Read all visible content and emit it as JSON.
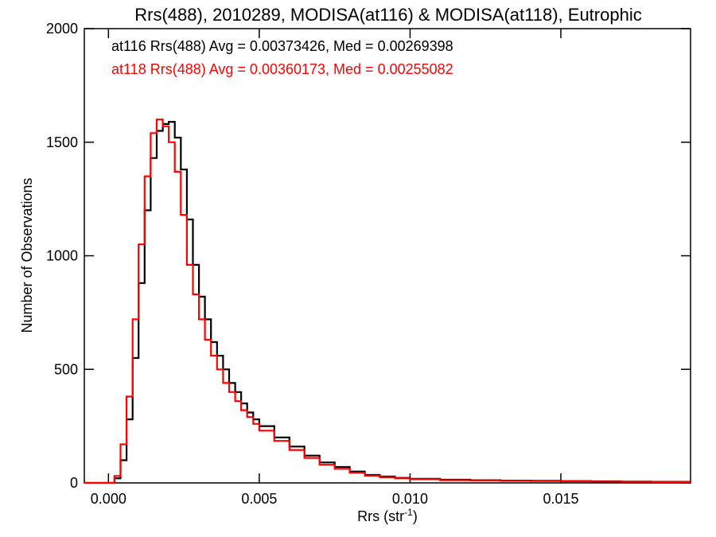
{
  "chart_data": {
    "type": "line",
    "title": "Rrs(488), 2010289, MODISA(at116) & MODISA(at118), Eutrophic",
    "xlabel": "Rrs (str",
    "xlabel_superscript": "-1",
    "xlabel_suffix": ")",
    "ylabel": "Number of Observations",
    "xlim": [
      -0.0008,
      0.0193
    ],
    "ylim": [
      0,
      2000
    ],
    "xticks": [
      0.0,
      0.005,
      0.01,
      0.015
    ],
    "xtick_labels": [
      "0.000",
      "0.005",
      "0.010",
      "0.015"
    ],
    "yticks": [
      0,
      500,
      1000,
      1500,
      2000
    ],
    "ytick_labels": [
      "0",
      "500",
      "1000",
      "1500",
      "2000"
    ],
    "grid": false,
    "legend_position": "top-left",
    "series": [
      {
        "name": "at116 Rrs(488) Avg = 0.00373426, Med = 0.00269398",
        "color": "#000000",
        "x": [
          -0.0008,
          0.0,
          0.0002,
          0.0004,
          0.0006,
          0.0008,
          0.001,
          0.0012,
          0.0014,
          0.0016,
          0.0018,
          0.002,
          0.0022,
          0.0024,
          0.0026,
          0.0028,
          0.003,
          0.0032,
          0.0034,
          0.0036,
          0.0038,
          0.004,
          0.0042,
          0.0044,
          0.0046,
          0.0048,
          0.005,
          0.0055,
          0.006,
          0.0065,
          0.007,
          0.0075,
          0.008,
          0.0085,
          0.009,
          0.0095,
          0.01,
          0.011,
          0.012,
          0.013,
          0.014,
          0.015,
          0.016,
          0.017,
          0.018,
          0.0193
        ],
        "values": [
          0,
          0,
          20,
          100,
          280,
          550,
          880,
          1200,
          1430,
          1550,
          1580,
          1590,
          1520,
          1380,
          1160,
          960,
          820,
          720,
          620,
          560,
          500,
          440,
          400,
          350,
          310,
          280,
          250,
          200,
          160,
          120,
          90,
          70,
          50,
          35,
          28,
          22,
          18,
          14,
          12,
          10,
          9,
          8,
          7,
          6,
          5,
          3
        ]
      },
      {
        "name": "at118 Rrs(488) Avg = 0.00360173, Med = 0.00255082",
        "color": "#ff0000",
        "x": [
          -0.0008,
          0.0,
          0.0002,
          0.0004,
          0.0006,
          0.0008,
          0.001,
          0.0012,
          0.0014,
          0.0016,
          0.0018,
          0.002,
          0.0022,
          0.0024,
          0.0026,
          0.0028,
          0.003,
          0.0032,
          0.0034,
          0.0036,
          0.0038,
          0.004,
          0.0042,
          0.0044,
          0.0046,
          0.0048,
          0.005,
          0.0055,
          0.006,
          0.0065,
          0.007,
          0.0075,
          0.008,
          0.0085,
          0.009,
          0.0095,
          0.01,
          0.011,
          0.012,
          0.013,
          0.014,
          0.015,
          0.016,
          0.017,
          0.018,
          0.0193
        ],
        "values": [
          0,
          0,
          30,
          170,
          380,
          720,
          1050,
          1350,
          1540,
          1600,
          1570,
          1500,
          1370,
          1180,
          960,
          830,
          720,
          630,
          560,
          500,
          440,
          400,
          360,
          320,
          290,
          260,
          230,
          185,
          145,
          110,
          80,
          62,
          45,
          32,
          25,
          20,
          16,
          12,
          11,
          9,
          8,
          7,
          6,
          5,
          4,
          3
        ]
      }
    ]
  }
}
